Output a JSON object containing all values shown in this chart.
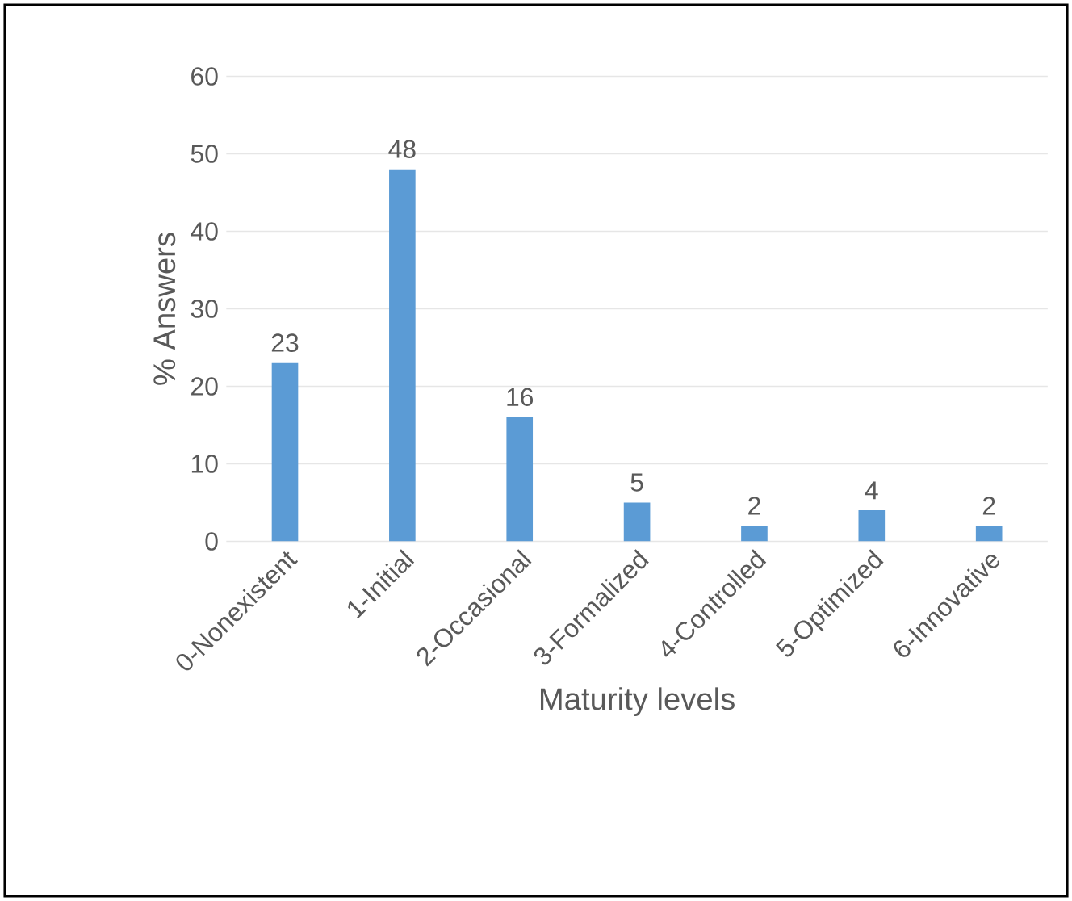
{
  "chart_data": {
    "type": "bar",
    "xlabel": "Maturity levels",
    "ylabel": "% Answers",
    "categories": [
      "0-Nonexistent",
      "1-Initial",
      "2-Occasional",
      "3-Formalized",
      "4-Controlled",
      "5-Optimized",
      "6-Innovative"
    ],
    "values": [
      23,
      48,
      16,
      5,
      2,
      4,
      2
    ],
    "color": "#5b9bd5",
    "ylim": [
      0,
      60
    ],
    "yticks": [
      0,
      10,
      20,
      30,
      40,
      50,
      60
    ],
    "grid": "y",
    "data_labels": true
  }
}
